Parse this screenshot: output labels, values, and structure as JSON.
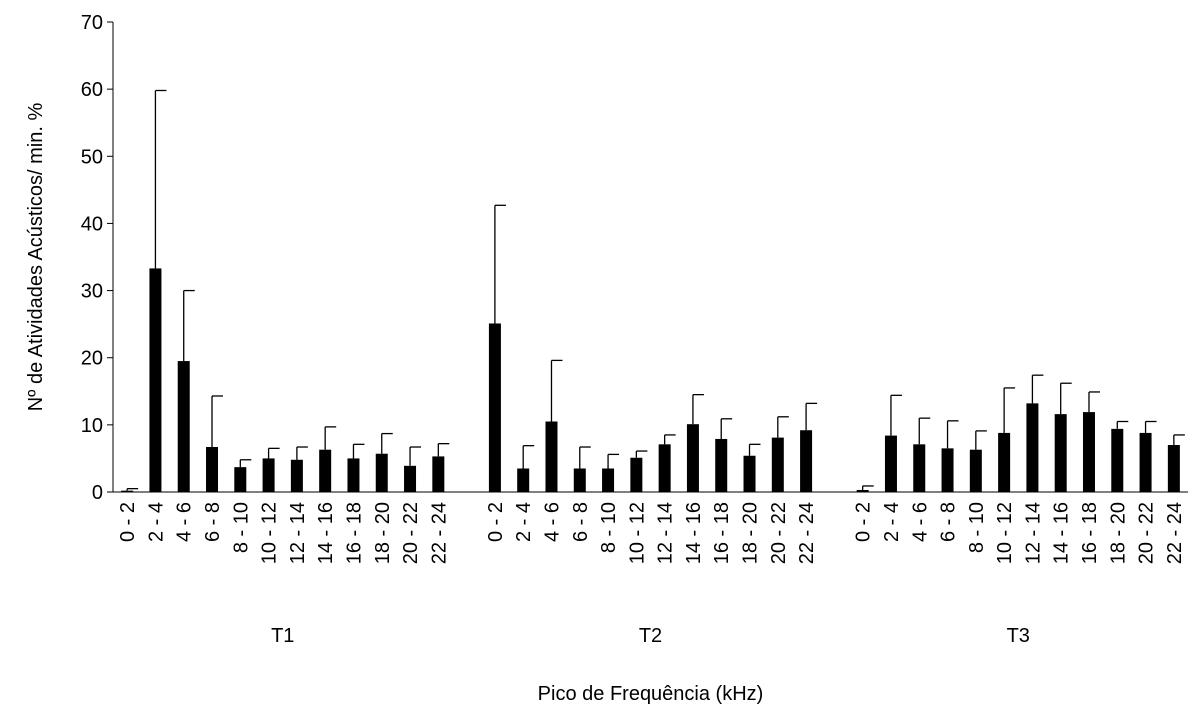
{
  "chart_data": {
    "type": "bar",
    "xlabel": "Pico de Frequência (kHz)",
    "ylabel": "Nº de Atividades  Acústicos/ min. %",
    "ylim": [
      0,
      70
    ],
    "yticks": [
      0,
      10,
      20,
      30,
      40,
      50,
      60,
      70
    ],
    "bar_color": "#000000",
    "error_bars": "upper",
    "groups": [
      {
        "name": "T1",
        "categories": [
          "0 - 2",
          "2 - 4",
          "4 - 6",
          "6 - 8",
          "8 - 10",
          "10 - 12",
          "12 - 14",
          "14 - 16",
          "16 - 18",
          "18 - 20",
          "20 - 22",
          "22 - 24"
        ],
        "values": [
          0.2,
          33.3,
          19.5,
          6.7,
          3.7,
          5.0,
          4.8,
          6.3,
          5.0,
          5.7,
          3.9,
          5.3
        ],
        "errors": [
          0.3,
          26.5,
          10.5,
          7.6,
          1.1,
          1.5,
          1.9,
          3.4,
          2.1,
          3.0,
          2.8,
          1.9
        ]
      },
      {
        "name": "T2",
        "categories": [
          "0 - 2",
          "2 - 4",
          "4 - 6",
          "6 - 8",
          "8 - 10",
          "10 - 12",
          "12 - 14",
          "14 - 16",
          "16 - 18",
          "18 - 20",
          "20 - 22",
          "22 - 24"
        ],
        "values": [
          25.1,
          3.5,
          10.5,
          3.5,
          3.5,
          5.1,
          7.1,
          10.1,
          7.9,
          5.4,
          8.1,
          9.2
        ],
        "errors": [
          17.6,
          3.4,
          9.1,
          3.2,
          2.1,
          1.0,
          1.4,
          4.4,
          3.0,
          1.7,
          3.1,
          4.0
        ]
      },
      {
        "name": "T3",
        "categories": [
          "0 - 2",
          "2 - 4",
          "4 - 6",
          "6 - 8",
          "8 - 10",
          "10 - 12",
          "12 - 14",
          "14 - 16",
          "16 - 18",
          "18 - 20",
          "20 - 22",
          "22 - 24"
        ],
        "values": [
          0.3,
          8.4,
          7.1,
          6.5,
          6.3,
          8.8,
          13.2,
          11.6,
          11.9,
          9.4,
          8.8,
          7.0
        ],
        "errors": [
          0.6,
          6.0,
          3.9,
          4.1,
          2.8,
          6.7,
          4.2,
          4.6,
          3.0,
          1.1,
          1.7,
          1.5
        ]
      }
    ]
  }
}
